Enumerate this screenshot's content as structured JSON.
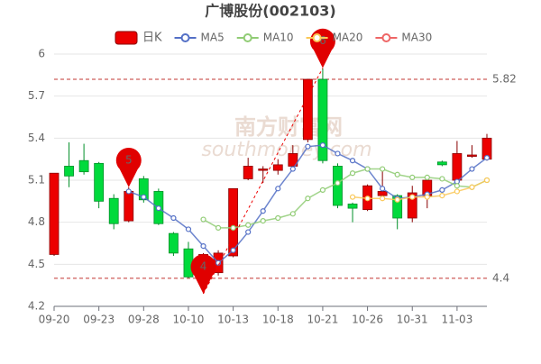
{
  "chart_data": {
    "type": "candlestick",
    "title": "广博股份(002103)",
    "watermark": [
      "南方财富网",
      "southmoney.com"
    ],
    "candle_name": "日K",
    "up_color": "#ec0000",
    "down_color": "#00da3c",
    "categories": [
      "09-20",
      null,
      null,
      "09-23",
      null,
      null,
      "09-28",
      null,
      null,
      "10-10",
      null,
      null,
      "10-13",
      null,
      null,
      "10-18",
      null,
      null,
      "10-21",
      null,
      null,
      "10-26",
      null,
      null,
      "10-31",
      null,
      null,
      "11-03",
      null,
      null
    ],
    "open": [
      4.57,
      5.2,
      5.24,
      5.22,
      4.97,
      4.81,
      5.11,
      5.02,
      4.72,
      4.61,
      4.43,
      4.44,
      4.56,
      5.11,
      5.17,
      5.17,
      5.2,
      5.39,
      5.82,
      5.2,
      4.93,
      4.89,
      4.99,
      4.99,
      4.83,
      4.99,
      5.23,
      5.1,
      5.27,
      5.25
    ],
    "close": [
      5.15,
      5.13,
      5.16,
      4.95,
      4.79,
      5.02,
      4.96,
      4.79,
      4.58,
      4.41,
      4.57,
      4.58,
      5.04,
      5.2,
      5.18,
      5.21,
      5.29,
      5.82,
      5.24,
      4.92,
      4.9,
      5.06,
      5.02,
      4.83,
      5.01,
      5.1,
      5.21,
      5.29,
      5.28,
      5.4
    ],
    "low": [
      4.56,
      5.05,
      5.14,
      4.9,
      4.75,
      4.8,
      4.94,
      4.78,
      4.56,
      4.4,
      4.29,
      4.42,
      4.55,
      5.1,
      5.08,
      5.14,
      5.17,
      5.37,
      5.22,
      4.9,
      4.8,
      4.88,
      4.98,
      4.75,
      4.8,
      4.9,
      5.2,
      5.08,
      5.26,
      5.24
    ],
    "high": [
      5.15,
      5.37,
      5.36,
      5.23,
      5.0,
      5.05,
      5.13,
      5.04,
      4.73,
      4.66,
      4.58,
      4.6,
      5.04,
      5.26,
      5.2,
      5.25,
      5.35,
      5.82,
      5.9,
      5.22,
      4.94,
      5.07,
      5.18,
      5.0,
      5.06,
      5.1,
      5.24,
      5.38,
      5.35,
      5.43
    ],
    "series": [
      {
        "name": "MA5",
        "color": "#5470c6",
        "values": [
          null,
          null,
          null,
          null,
          null,
          5.02,
          4.98,
          4.9,
          4.83,
          4.75,
          4.63,
          4.51,
          4.6,
          4.73,
          4.88,
          5.04,
          5.18,
          5.34,
          5.35,
          5.29,
          5.24,
          5.18,
          5.04,
          4.97,
          4.98,
          5.0,
          5.03,
          5.09,
          5.18,
          5.26
        ]
      },
      {
        "name": "MA10",
        "color": "#91cc75",
        "values": [
          null,
          null,
          null,
          null,
          null,
          null,
          null,
          null,
          null,
          null,
          4.82,
          4.76,
          4.76,
          4.78,
          4.81,
          4.83,
          4.86,
          4.97,
          5.03,
          5.08,
          5.15,
          5.18,
          5.18,
          5.14,
          5.12,
          5.12,
          5.11,
          5.06,
          5.05,
          5.1
        ]
      },
      {
        "name": "MA20",
        "color": "#fac858",
        "values": [
          null,
          null,
          null,
          null,
          null,
          null,
          null,
          null,
          null,
          null,
          null,
          null,
          null,
          null,
          null,
          null,
          null,
          null,
          null,
          null,
          4.98,
          4.97,
          4.97,
          4.96,
          4.98,
          4.98,
          4.99,
          5.02,
          5.05,
          5.1
        ]
      },
      {
        "name": "MA30",
        "color": "#ee6666",
        "values": [
          null,
          null,
          null,
          null,
          null,
          null,
          null,
          null,
          null,
          null,
          null,
          null,
          null,
          null,
          null,
          null,
          null,
          null,
          null,
          null,
          null,
          null,
          null,
          null,
          null,
          null,
          null,
          null,
          null,
          null
        ]
      }
    ],
    "mark_lines": [
      5.82,
      4.4
    ],
    "pins": [
      {
        "label": "5",
        "value": 5.05
      },
      {
        "label": "4",
        "value": 4.29
      },
      {
        "label": "6",
        "value": 5.9
      }
    ],
    "ylim": [
      4.2,
      6
    ],
    "yticks": [
      4.2,
      4.5,
      4.8,
      5.1,
      5.4,
      5.7,
      6
    ],
    "grid": true
  }
}
